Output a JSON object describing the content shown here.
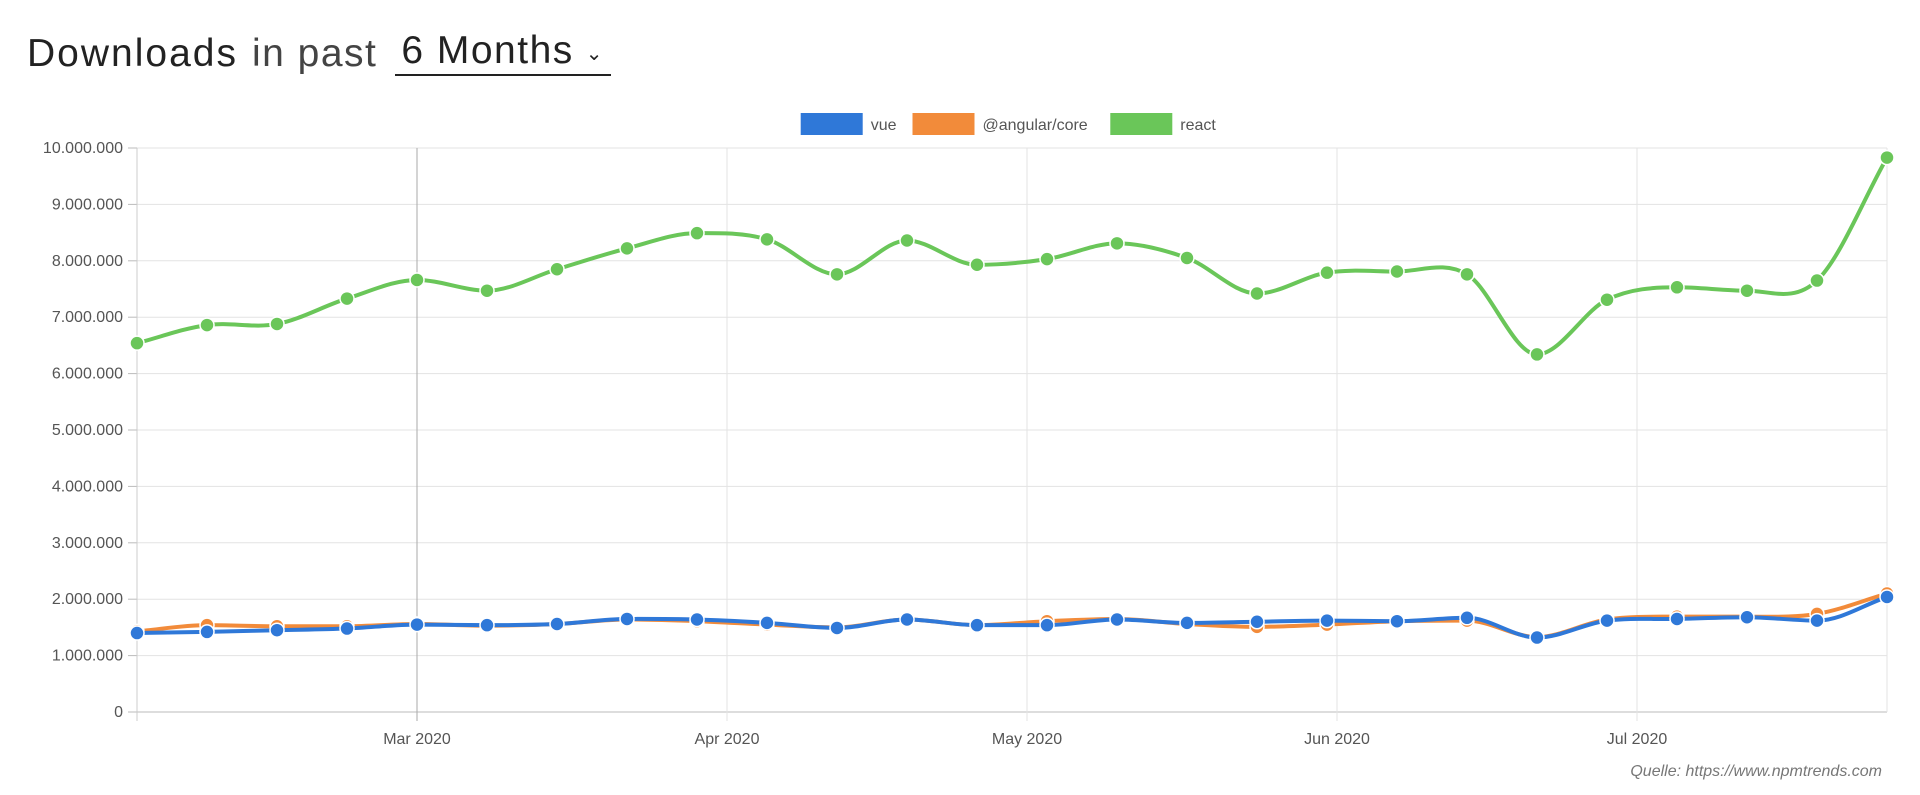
{
  "header": {
    "title": "Downloads",
    "in_past": "in past",
    "period": "6 Months"
  },
  "source": "Quelle: https://www.npmtrends.com",
  "chart_data": {
    "type": "line",
    "x": [
      "2020-02-02",
      "2020-02-09",
      "2020-02-16",
      "2020-02-23",
      "2020-03-01",
      "2020-03-08",
      "2020-03-15",
      "2020-03-22",
      "2020-03-29",
      "2020-04-05",
      "2020-04-12",
      "2020-04-19",
      "2020-04-26",
      "2020-05-03",
      "2020-05-10",
      "2020-05-17",
      "2020-05-24",
      "2020-05-31",
      "2020-06-07",
      "2020-06-14",
      "2020-06-21",
      "2020-06-28",
      "2020-07-05",
      "2020-07-12",
      "2020-07-19",
      "2020-07-26"
    ],
    "x_tick_labels": [
      "Mar 2020",
      "Apr 2020",
      "May 2020",
      "Jun 2020",
      "Jul 2020"
    ],
    "x_ticks": [
      "2020-03-01",
      "2020-04-01",
      "2020-05-01",
      "2020-06-01",
      "2020-07-01"
    ],
    "y_tick_labels": [
      "0",
      "1.000.000",
      "2.000.000",
      "3.000.000",
      "4.000.000",
      "5.000.000",
      "6.000.000",
      "7.000.000",
      "8.000.000",
      "9.000.000",
      "10.000.000"
    ],
    "ylim": [
      0,
      10000000
    ],
    "grid": true,
    "legend_position": "top-center",
    "series": [
      {
        "name": "vue",
        "color": "#2f78d8",
        "values": [
          1400000,
          1420000,
          1450000,
          1480000,
          1550000,
          1540000,
          1560000,
          1650000,
          1640000,
          1580000,
          1490000,
          1640000,
          1540000,
          1540000,
          1640000,
          1580000,
          1600000,
          1620000,
          1610000,
          1670000,
          1320000,
          1620000,
          1650000,
          1680000,
          1620000,
          2040000
        ]
      },
      {
        "name": "@angular/core",
        "color": "#f28b3a",
        "values": [
          1430000,
          1540000,
          1520000,
          1520000,
          1560000,
          1530000,
          1560000,
          1640000,
          1610000,
          1550000,
          1500000,
          1640000,
          1540000,
          1610000,
          1650000,
          1560000,
          1510000,
          1550000,
          1610000,
          1620000,
          1330000,
          1640000,
          1690000,
          1690000,
          1740000,
          2100000
        ]
      },
      {
        "name": "react",
        "color": "#6ac659",
        "values": [
          6540000,
          6860000,
          6880000,
          7330000,
          7660000,
          7470000,
          7850000,
          8220000,
          8490000,
          8380000,
          7760000,
          8360000,
          7930000,
          8030000,
          8310000,
          8050000,
          7420000,
          7790000,
          7810000,
          7760000,
          6340000,
          7310000,
          7530000,
          7470000,
          7650000,
          9830000
        ]
      }
    ]
  }
}
